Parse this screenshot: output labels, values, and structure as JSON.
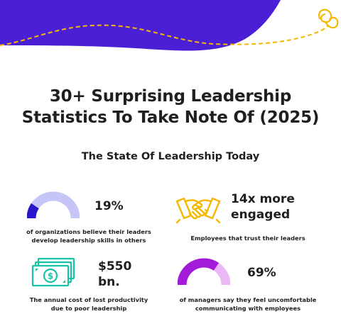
{
  "title_line1": "30+ Surprising Leadership",
  "title_line2": "Statistics To Take Note Of (2025)",
  "subtitle": "The State Of Leadership Today",
  "colors": {
    "banner_purple": "#4b1fd6",
    "dashed_line": "#f5b800",
    "gauge_light": "#c5c5f7",
    "gauge_dark": "#2a18c8",
    "gauge2_light": "#e9b8f5",
    "gauge2_dark": "#a21bd8",
    "money_green": "#15c3a6",
    "handshake_yellow": "#f5b800"
  },
  "stats": [
    {
      "value": "19%",
      "caption_line1": "of organizations believe their leaders",
      "caption_line2": "develop leadership skills in others",
      "icon": "semicircle-gauge-icon",
      "fraction": 0.19
    },
    {
      "value_line1": "14x more",
      "value_line2": "engaged",
      "caption_line1": "Employees that trust their leaders",
      "icon": "handshake-icon"
    },
    {
      "value_line1": "$550",
      "value_line2": "bn.",
      "caption_line1": "The annual cost of lost productivity",
      "caption_line2": "due to poor leadership",
      "icon": "money-bills-icon"
    },
    {
      "value": "69%",
      "caption_line1": "of managers say they feel uncomfortable",
      "caption_line2": "communicating with employees",
      "icon": "semicircle-gauge-icon",
      "fraction": 0.69
    }
  ]
}
